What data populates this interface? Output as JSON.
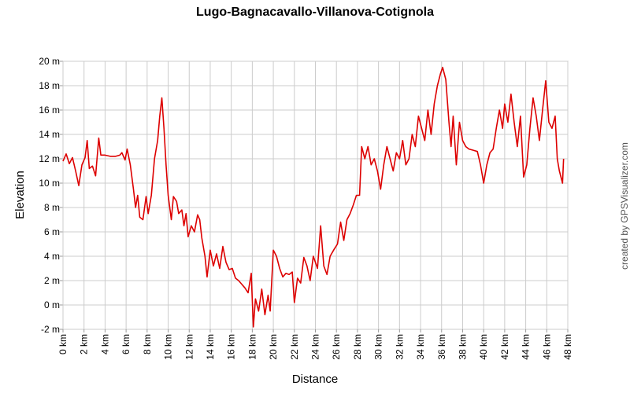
{
  "chart_data": {
    "type": "line",
    "title": "Lugo-Bagnacavallo-Villanova-Cotignola",
    "x_label": "Distance",
    "y_label": "Elevation",
    "credit": "created by GPSVisualizer.com",
    "grid": true,
    "color": "#dd0000",
    "xlim": [
      0,
      48
    ],
    "ylim": [
      -2,
      20
    ],
    "xticks": [
      {
        "value": 0,
        "label": "0 km"
      },
      {
        "value": 2,
        "label": "2 km"
      },
      {
        "value": 4,
        "label": "4 km"
      },
      {
        "value": 6,
        "label": "6 km"
      },
      {
        "value": 8,
        "label": "8 km"
      },
      {
        "value": 10,
        "label": "10 km"
      },
      {
        "value": 12,
        "label": "12 km"
      },
      {
        "value": 14,
        "label": "14 km"
      },
      {
        "value": 16,
        "label": "16 km"
      },
      {
        "value": 18,
        "label": "18 km"
      },
      {
        "value": 20,
        "label": "20 km"
      },
      {
        "value": 22,
        "label": "22 km"
      },
      {
        "value": 24,
        "label": "24 km"
      },
      {
        "value": 26,
        "label": "26 km"
      },
      {
        "value": 28,
        "label": "28 km"
      },
      {
        "value": 30,
        "label": "30 km"
      },
      {
        "value": 32,
        "label": "32 km"
      },
      {
        "value": 34,
        "label": "34 km"
      },
      {
        "value": 36,
        "label": "36 km"
      },
      {
        "value": 38,
        "label": "38 km"
      },
      {
        "value": 40,
        "label": "40 km"
      },
      {
        "value": 42,
        "label": "42 km"
      },
      {
        "value": 44,
        "label": "44 km"
      },
      {
        "value": 46,
        "label": "46 km"
      },
      {
        "value": 48,
        "label": "48 km"
      }
    ],
    "yticks": [
      {
        "value": -2,
        "label": "-2 m"
      },
      {
        "value": 0,
        "label": "0 m"
      },
      {
        "value": 2,
        "label": "2 m"
      },
      {
        "value": 4,
        "label": "4 m"
      },
      {
        "value": 6,
        "label": "6 m"
      },
      {
        "value": 8,
        "label": "8 m"
      },
      {
        "value": 10,
        "label": "10 m"
      },
      {
        "value": 12,
        "label": "12 m"
      },
      {
        "value": 14,
        "label": "14 m"
      },
      {
        "value": 16,
        "label": "16 m"
      },
      {
        "value": 18,
        "label": "18 m"
      },
      {
        "value": 20,
        "label": "20 m"
      }
    ],
    "x": [
      0,
      0.3,
      0.6,
      0.9,
      1.2,
      1.5,
      1.8,
      2.1,
      2.3,
      2.5,
      2.8,
      3.1,
      3.4,
      3.6,
      4.0,
      4.5,
      5.0,
      5.4,
      5.6,
      5.9,
      6.1,
      6.4,
      6.7,
      6.9,
      7.1,
      7.3,
      7.6,
      7.9,
      8.1,
      8.4,
      8.7,
      9.0,
      9.2,
      9.4,
      9.6,
      9.8,
      10.0,
      10.3,
      10.5,
      10.8,
      11.0,
      11.3,
      11.5,
      11.7,
      11.9,
      12.2,
      12.5,
      12.8,
      13.0,
      13.2,
      13.5,
      13.7,
      14.0,
      14.3,
      14.6,
      14.9,
      15.2,
      15.5,
      15.8,
      16.1,
      16.4,
      16.7,
      17.0,
      17.3,
      17.6,
      17.9,
      18.1,
      18.3,
      18.6,
      18.9,
      19.2,
      19.5,
      19.7,
      20.0,
      20.3,
      20.6,
      20.9,
      21.2,
      21.5,
      21.8,
      22.0,
      22.3,
      22.6,
      22.9,
      23.2,
      23.5,
      23.8,
      24.2,
      24.5,
      24.8,
      25.1,
      25.4,
      25.8,
      26.1,
      26.4,
      26.7,
      27.0,
      27.3,
      27.6,
      27.9,
      28.2,
      28.4,
      28.7,
      29.0,
      29.3,
      29.6,
      29.9,
      30.2,
      30.5,
      30.8,
      31.1,
      31.4,
      31.7,
      32.0,
      32.3,
      32.6,
      32.9,
      33.2,
      33.5,
      33.8,
      34.1,
      34.4,
      34.7,
      35.0,
      35.3,
      35.6,
      35.9,
      36.1,
      36.4,
      36.7,
      36.9,
      37.1,
      37.4,
      37.7,
      38.0,
      38.3,
      38.6,
      39.0,
      39.4,
      39.7,
      40.0,
      40.3,
      40.6,
      40.9,
      41.2,
      41.5,
      41.8,
      42.0,
      42.3,
      42.6,
      42.9,
      43.2,
      43.5,
      43.8,
      44.1,
      44.4,
      44.7,
      45.0,
      45.3,
      45.6,
      45.9,
      46.2,
      46.5,
      46.8,
      47.0,
      47.2,
      47.5,
      47.6
    ],
    "values": [
      11.8,
      12.4,
      11.6,
      12.1,
      11,
      9.8,
      11.5,
      12.1,
      13.5,
      11.2,
      11.4,
      10.6,
      13.7,
      12.3,
      12.3,
      12.2,
      12.2,
      12.3,
      12.5,
      11.9,
      12.8,
      11.5,
      9.5,
      8.0,
      9.0,
      7.2,
      7.0,
      8.9,
      7.5,
      9.0,
      12.0,
      13.5,
      15.5,
      17.0,
      14.5,
      11.5,
      9.0,
      7.0,
      8.9,
      8.5,
      7.5,
      7.8,
      6.5,
      7.5,
      5.6,
      6.5,
      6.0,
      7.4,
      7.0,
      5.5,
      4.0,
      2.3,
      4.5,
      3.2,
      4.2,
      3.0,
      4.8,
      3.5,
      2.9,
      3.0,
      2.2,
      2.0,
      1.7,
      1.4,
      1.0,
      2.6,
      -1.8,
      0.5,
      -0.5,
      1.3,
      -0.8,
      0.8,
      -0.5,
      4.5,
      4.0,
      3.0,
      2.3,
      2.6,
      2.5,
      2.7,
      0.2,
      2.2,
      1.8,
      3.9,
      3.2,
      2.0,
      4.0,
      3.0,
      6.5,
      3.2,
      2.5,
      4.0,
      4.6,
      5.0,
      6.8,
      5.3,
      7.0,
      7.5,
      8.2,
      9.0,
      9.0,
      13.0,
      12.0,
      13.0,
      11.5,
      12.0,
      11.0,
      9.5,
      11.5,
      13.0,
      12.0,
      11.0,
      12.5,
      12.0,
      13.5,
      11.5,
      12.0,
      14.0,
      13.0,
      15.5,
      14.5,
      13.5,
      16.0,
      14.0,
      16.5,
      18.0,
      19.0,
      19.5,
      18.5,
      15.0,
      13.0,
      15.5,
      11.5,
      15.0,
      13.5,
      13.0,
      12.8,
      12.7,
      12.6,
      11.5,
      10.0,
      11.5,
      12.5,
      12.8,
      14.5,
      16.0,
      14.5,
      16.5,
      15.0,
      17.3,
      15.0,
      13.0,
      15.5,
      10.5,
      11.5,
      14.5,
      17.0,
      15.5,
      13.5,
      16.0,
      18.4,
      15.0,
      14.5,
      15.5,
      12.0,
      11.0,
      10.0,
      12.0
    ]
  }
}
